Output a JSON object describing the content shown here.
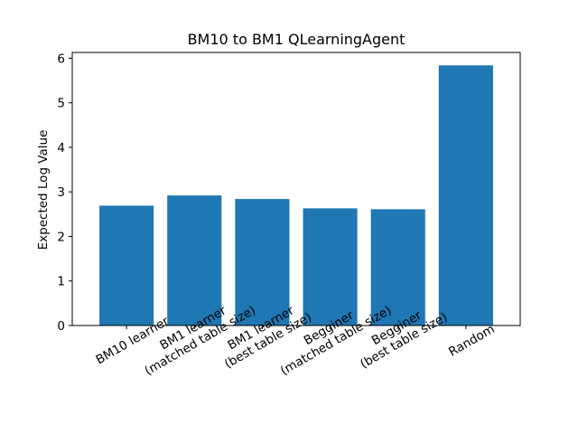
{
  "chart_data": {
    "type": "bar",
    "title": "BM10 to BM1 QLearningAgent",
    "xlabel": "",
    "ylabel": "Expected Log Value",
    "categories": [
      [
        "BM10 learner"
      ],
      [
        "BM1 learner",
        "(matched table size)"
      ],
      [
        "BM1 learner",
        "(best table size)"
      ],
      [
        "Begginer",
        "(matched table size)"
      ],
      [
        "Begginer",
        "(best table size)"
      ],
      [
        "Random"
      ]
    ],
    "values": [
      2.69,
      2.92,
      2.84,
      2.63,
      2.61,
      5.84
    ],
    "ylim": [
      0,
      6.13
    ],
    "yticks": [
      0,
      1,
      2,
      3,
      4,
      5,
      6
    ],
    "bar_color": "#1f77b4",
    "xtick_rotation_deg": -30,
    "grid": false,
    "legend": "none"
  }
}
